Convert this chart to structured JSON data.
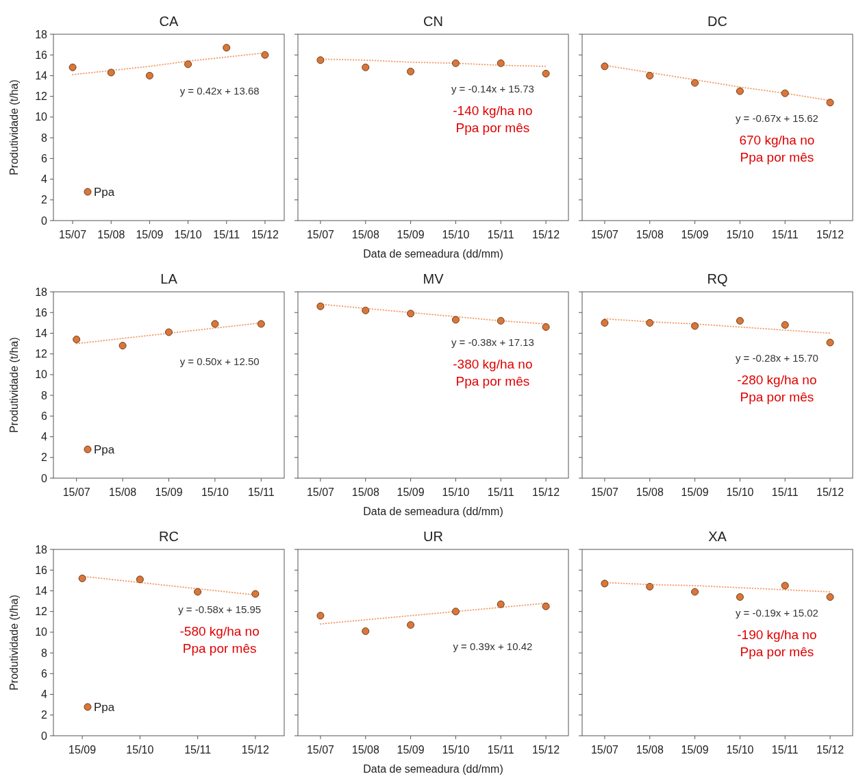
{
  "chart_data": [
    {
      "type": "scatter",
      "title": "CA",
      "categories": [
        "15/07",
        "15/08",
        "15/09",
        "15/10",
        "15/11",
        "15/12"
      ],
      "ylabel": "Produtividade (t/ha)",
      "ylim": [
        0,
        18
      ],
      "yticks": [
        0,
        2,
        4,
        6,
        8,
        10,
        12,
        14,
        16,
        18
      ],
      "legend": "bottom left",
      "series": [
        {
          "name": "Ppa",
          "marker": "circle",
          "color": "#d9773a",
          "values": [
            14.8,
            14.3,
            14.0,
            15.1,
            16.7,
            16.0
          ]
        },
        {
          "type": "line",
          "line_style": "dotted",
          "color": "#f4a070",
          "values": [
            14.1,
            14.5,
            14.9,
            15.4,
            15.8,
            16.2
          ]
        }
      ],
      "annotations": [
        "y = 0.42x + 13.68"
      ]
    },
    {
      "type": "scatter",
      "title": "CN",
      "categories": [
        "15/07",
        "15/08",
        "15/09",
        "15/10",
        "15/11",
        "15/12"
      ],
      "xlabel": "Data de semeadura (dd/mm)",
      "ylim": [
        0,
        18
      ],
      "yticks": [
        0,
        2,
        4,
        6,
        8,
        10,
        12,
        14,
        16,
        18
      ],
      "tick_labels": "x",
      "series": [
        {
          "marker": "circle",
          "color": "#d9773a",
          "values": [
            15.5,
            14.8,
            14.4,
            15.2,
            15.2,
            14.2
          ]
        },
        {
          "type": "line",
          "line_style": "dotted",
          "color": "#f4a070",
          "values": [
            15.6,
            15.5,
            15.3,
            15.2,
            15.0,
            14.9
          ]
        }
      ],
      "annotations": [
        "y = -0.14x + 15.73",
        "-140 kg/ha  no",
        "Ppa por mês"
      ]
    },
    {
      "type": "scatter",
      "title": "DC",
      "categories": [
        "15/07",
        "15/08",
        "15/09",
        "15/10",
        "15/11",
        "15/12"
      ],
      "ylim": [
        0,
        18
      ],
      "yticks": [
        0,
        2,
        4,
        6,
        8,
        10,
        12,
        14,
        16,
        18
      ],
      "tick_labels": "x",
      "series": [
        {
          "marker": "circle",
          "color": "#d9773a",
          "values": [
            14.9,
            14.0,
            13.3,
            12.5,
            12.3,
            11.4
          ]
        },
        {
          "type": "line",
          "line_style": "dotted",
          "color": "#f4a070",
          "values": [
            15.0,
            14.3,
            13.6,
            12.9,
            12.3,
            11.6
          ]
        }
      ],
      "annotations": [
        "y = -0.67x + 15.62",
        "670 kg/ha  no",
        "Ppa por mês"
      ]
    },
    {
      "type": "scatter",
      "title": "LA",
      "categories": [
        "15/07",
        "15/08",
        "15/09",
        "15/10",
        "15/11"
      ],
      "ylabel": "Produtividade (t/ha)",
      "ylim": [
        0,
        18
      ],
      "yticks": [
        0,
        2,
        4,
        6,
        8,
        10,
        12,
        14,
        16,
        18
      ],
      "legend": "bottom left",
      "series": [
        {
          "name": "Ppa",
          "marker": "circle",
          "color": "#d9773a",
          "values": [
            13.4,
            12.8,
            14.1,
            14.9,
            14.9
          ]
        },
        {
          "type": "line",
          "line_style": "dotted",
          "color": "#f4a070",
          "values": [
            13.0,
            13.5,
            14.0,
            14.5,
            15.0
          ]
        }
      ],
      "annotations": [
        "y = 0.50x + 12.50"
      ]
    },
    {
      "type": "scatter",
      "title": "MV",
      "categories": [
        "15/07",
        "15/08",
        "15/09",
        "15/10",
        "15/11",
        "15/12"
      ],
      "xlabel": "Data de semeadura (dd/mm)",
      "ylim": [
        0,
        18
      ],
      "yticks": [
        0,
        2,
        4,
        6,
        8,
        10,
        12,
        14,
        16,
        18
      ],
      "tick_labels": "x",
      "series": [
        {
          "marker": "circle",
          "color": "#d9773a",
          "values": [
            16.6,
            16.2,
            15.9,
            15.3,
            15.2,
            14.6
          ]
        },
        {
          "type": "line",
          "line_style": "dotted",
          "color": "#f4a070",
          "values": [
            16.8,
            16.4,
            16.0,
            15.6,
            15.2,
            14.9
          ]
        }
      ],
      "annotations": [
        "y = -0.38x + 17.13",
        "-380 kg/ha  no",
        "Ppa por mês"
      ]
    },
    {
      "type": "scatter",
      "title": "RQ",
      "categories": [
        "15/07",
        "15/08",
        "15/09",
        "15/10",
        "15/11",
        "15/12"
      ],
      "ylim": [
        0,
        18
      ],
      "yticks": [
        0,
        2,
        4,
        6,
        8,
        10,
        12,
        14,
        16,
        18
      ],
      "tick_labels": "x",
      "series": [
        {
          "marker": "circle",
          "color": "#d9773a",
          "values": [
            15.0,
            15.0,
            14.7,
            15.2,
            14.8,
            13.1
          ]
        },
        {
          "type": "line",
          "line_style": "dotted",
          "color": "#f4a070",
          "values": [
            15.4,
            15.1,
            14.9,
            14.6,
            14.3,
            14.0
          ]
        }
      ],
      "annotations": [
        "y = -0.28x + 15.70",
        "-280 kg/ha  no",
        "Ppa por mês"
      ]
    },
    {
      "type": "scatter",
      "title": "RC",
      "categories": [
        "15/09",
        "15/10",
        "15/11",
        "15/12"
      ],
      "ylabel": "Produtividade (t/ha)",
      "ylim": [
        0,
        18
      ],
      "yticks": [
        0,
        2,
        4,
        6,
        8,
        10,
        12,
        14,
        16,
        18
      ],
      "legend": "bottom left",
      "series": [
        {
          "name": "Ppa",
          "marker": "circle",
          "color": "#d9773a",
          "values": [
            15.2,
            15.1,
            13.9,
            13.7
          ]
        },
        {
          "type": "line",
          "line_style": "dotted",
          "color": "#f4a070",
          "values": [
            15.4,
            14.8,
            14.2,
            13.6
          ]
        }
      ],
      "annotations": [
        "y = -0.58x + 15.95",
        "-580 kg/ha  no",
        "Ppa por mês"
      ]
    },
    {
      "type": "scatter",
      "title": "UR",
      "categories": [
        "15/07",
        "15/08",
        "15/09",
        "15/10",
        "15/11",
        "15/12"
      ],
      "xlabel": "Data de semeadura (dd/mm)",
      "ylim": [
        0,
        18
      ],
      "yticks": [
        0,
        2,
        4,
        6,
        8,
        10,
        12,
        14,
        16,
        18
      ],
      "tick_labels": "x",
      "series": [
        {
          "marker": "circle",
          "color": "#d9773a",
          "values": [
            11.6,
            10.1,
            10.7,
            12.0,
            12.7,
            12.5
          ]
        },
        {
          "type": "line",
          "line_style": "dotted",
          "color": "#f4a070",
          "values": [
            10.8,
            11.2,
            11.6,
            12.0,
            12.4,
            12.8
          ]
        }
      ],
      "annotations": [
        "y = 0.39x + 10.42"
      ]
    },
    {
      "type": "scatter",
      "title": "XA",
      "categories": [
        "15/07",
        "15/08",
        "15/09",
        "15/10",
        "15/11",
        "15/12"
      ],
      "ylim": [
        0,
        18
      ],
      "yticks": [
        0,
        2,
        4,
        6,
        8,
        10,
        12,
        14,
        16,
        18
      ],
      "tick_labels": "x",
      "series": [
        {
          "marker": "circle",
          "color": "#d9773a",
          "values": [
            14.7,
            14.4,
            13.9,
            13.4,
            14.5,
            13.4
          ]
        },
        {
          "type": "line",
          "line_style": "dotted",
          "color": "#f4a070",
          "values": [
            14.8,
            14.6,
            14.5,
            14.3,
            14.1,
            13.9
          ]
        }
      ],
      "annotations": [
        "y = -0.19x + 15.02",
        "-190 kg/ha  no",
        "Ppa por mês"
      ]
    }
  ]
}
